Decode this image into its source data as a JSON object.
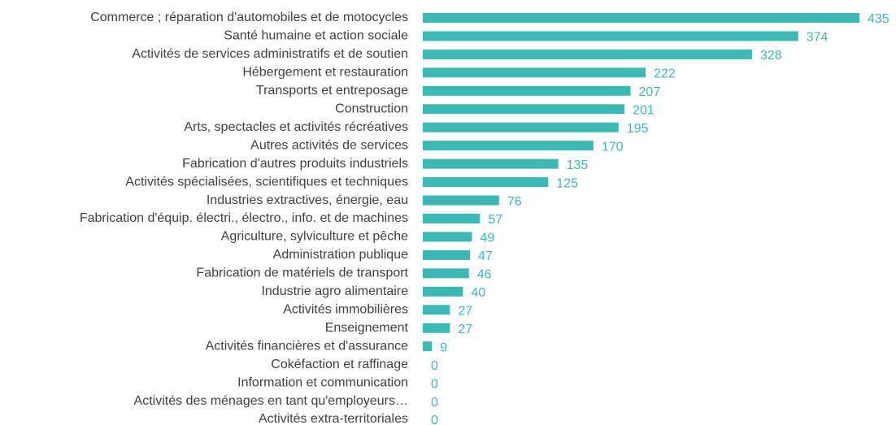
{
  "chart_data": {
    "type": "bar",
    "orientation": "horizontal",
    "color": "#3cb9b4",
    "label_color": "#3cb9b4",
    "categories": [
      "Commerce ; réparation d'automobiles et de motocycles",
      "Santé humaine et action sociale",
      "Activités de services administratifs et de soutien",
      "Hébergement et restauration",
      "Transports et entreposage",
      "Construction",
      "Arts, spectacles et activités récréatives",
      "Autres activités de services",
      "Fabrication d'autres produits industriels",
      "Activités spécialisées, scientifiques et techniques",
      "Industries extractives, énergie, eau",
      "Fabrication d'équip. électri., électro., info. et de machines",
      "Agriculture, sylviculture et pêche",
      "Administration publique",
      "Fabrication de matériels de transport",
      "Industrie agro alimentaire",
      "Activités immobilières",
      "Enseignement",
      "Activités financières et d'assurance",
      "Cokéfaction et raffinage",
      "Information et communication",
      "Activités des ménages en tant qu'employeurs…",
      "Activités extra-territoriales"
    ],
    "values": [
      435,
      374,
      328,
      222,
      207,
      201,
      195,
      170,
      135,
      125,
      76,
      57,
      49,
      47,
      46,
      40,
      27,
      27,
      9,
      0,
      0,
      0,
      0
    ]
  }
}
